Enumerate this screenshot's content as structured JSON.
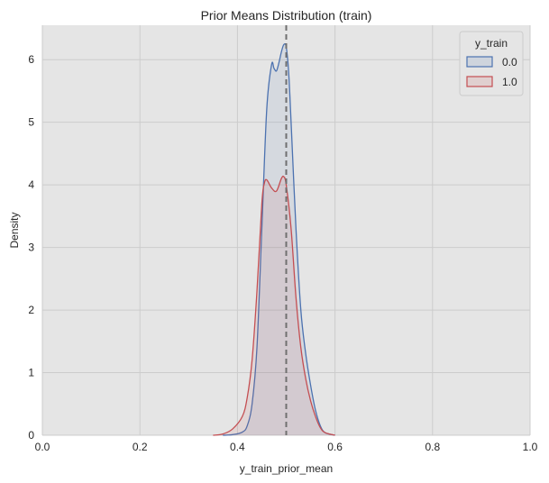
{
  "chart_data": {
    "type": "area",
    "title": "Prior Means Distribution (train)",
    "xlabel": "y_train_prior_mean",
    "ylabel": "Density",
    "xlim": [
      0,
      1
    ],
    "ylim": [
      0,
      6.55
    ],
    "xticks": [
      "0.0",
      "0.2",
      "0.4",
      "0.6",
      "0.8",
      "1.0"
    ],
    "yticks": [
      "0",
      "1",
      "2",
      "3",
      "4",
      "5",
      "6"
    ],
    "grid": true,
    "legend": {
      "title": "y_train",
      "position": "top-right"
    },
    "reference_line": {
      "x": 0.5,
      "style": "dashed",
      "color": "#707070"
    },
    "series": [
      {
        "name": "0.0",
        "color": "#4c72b0",
        "fill": "#4c72b0",
        "x": [
          0.37,
          0.39,
          0.41,
          0.42,
          0.43,
          0.44,
          0.45,
          0.46,
          0.47,
          0.475,
          0.48,
          0.485,
          0.49,
          0.495,
          0.5,
          0.505,
          0.51,
          0.52,
          0.53,
          0.54,
          0.55,
          0.56,
          0.57,
          0.58,
          0.6
        ],
        "y": [
          0.0,
          0.01,
          0.05,
          0.15,
          0.5,
          1.4,
          3.3,
          5.2,
          5.92,
          5.86,
          5.82,
          5.95,
          6.12,
          6.24,
          6.2,
          5.8,
          5.0,
          3.3,
          2.0,
          1.3,
          0.8,
          0.4,
          0.15,
          0.04,
          0.0
        ]
      },
      {
        "name": "1.0",
        "color": "#c44e52",
        "fill": "#c44e52",
        "x": [
          0.35,
          0.37,
          0.39,
          0.41,
          0.42,
          0.43,
          0.44,
          0.45,
          0.455,
          0.46,
          0.47,
          0.48,
          0.49,
          0.495,
          0.5,
          0.51,
          0.52,
          0.53,
          0.54,
          0.55,
          0.56,
          0.57,
          0.58,
          0.6
        ],
        "y": [
          0.0,
          0.02,
          0.1,
          0.3,
          0.6,
          1.2,
          2.3,
          3.7,
          4.02,
          4.08,
          3.95,
          3.9,
          4.1,
          4.13,
          4.0,
          3.3,
          2.2,
          1.4,
          0.9,
          0.55,
          0.3,
          0.12,
          0.04,
          0.0
        ]
      }
    ]
  }
}
